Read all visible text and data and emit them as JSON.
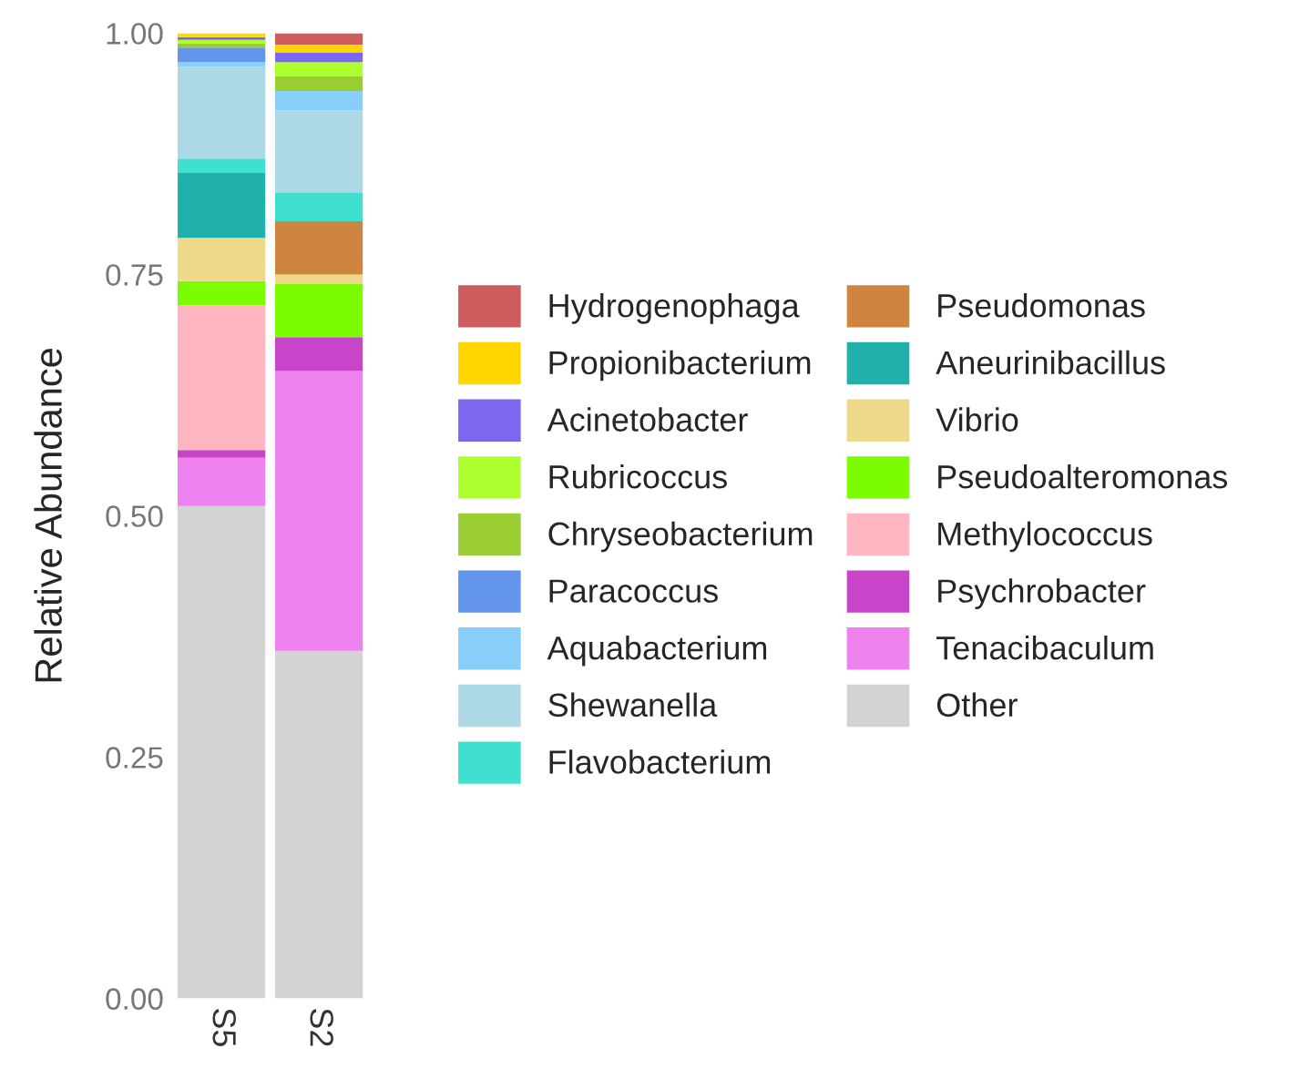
{
  "chart_data": {
    "type": "bar",
    "stacked": true,
    "ylabel": "Relative Abundance",
    "categories": [
      "S5",
      "S2"
    ],
    "ylim": [
      0,
      1
    ],
    "yticks": [
      {
        "value": 0,
        "label": "0.00"
      },
      {
        "value": 0.25,
        "label": "0.25"
      },
      {
        "value": 0.5,
        "label": "0.50"
      },
      {
        "value": 0.75,
        "label": "0.75"
      },
      {
        "value": 1,
        "label": "1.00"
      }
    ],
    "grid": false,
    "legend": "right",
    "series": [
      {
        "name": "Other",
        "color": "#d3d3d3",
        "values": [
          0.51,
          0.36
        ]
      },
      {
        "name": "Tenacibaculum",
        "color": "#ee82ee",
        "values": [
          0.05,
          0.29
        ]
      },
      {
        "name": "Psychrobacter",
        "color": "#c844c8",
        "values": [
          0.008,
          0.035
        ]
      },
      {
        "name": "Methylococcus",
        "color": "#ffb6c1",
        "values": [
          0.15,
          0
        ]
      },
      {
        "name": "Pseudoalteromonas",
        "color": "#7cfc00",
        "values": [
          0.025,
          0.055
        ]
      },
      {
        "name": "Vibrio",
        "color": "#eed98a",
        "values": [
          0.045,
          0.01
        ]
      },
      {
        "name": "Aneurinibacillus",
        "color": "#20b2aa",
        "values": [
          0.067,
          0
        ]
      },
      {
        "name": "Pseudomonas",
        "color": "#cd853f",
        "values": [
          0,
          0.055
        ]
      },
      {
        "name": "Flavobacterium",
        "color": "#40e0d0",
        "values": [
          0.015,
          0.03
        ]
      },
      {
        "name": "Shewanella",
        "color": "#add8e6",
        "values": [
          0.095,
          0.085
        ]
      },
      {
        "name": "Aquabacterium",
        "color": "#87cefa",
        "values": [
          0.005,
          0.02
        ]
      },
      {
        "name": "Paracoccus",
        "color": "#6495ed",
        "values": [
          0.015,
          0
        ]
      },
      {
        "name": "Chryseobacterium",
        "color": "#9acd32",
        "values": [
          0.004,
          0.015
        ]
      },
      {
        "name": "Rubricoccus",
        "color": "#adff2f",
        "values": [
          0.004,
          0.015
        ]
      },
      {
        "name": "Acinetobacter",
        "color": "#7b68ee",
        "values": [
          0.003,
          0.01
        ]
      },
      {
        "name": "Propionibacterium",
        "color": "#ffd700",
        "values": [
          0.004,
          0.008
        ]
      },
      {
        "name": "Hydrogenophaga",
        "color": "#cd5c5c",
        "values": [
          0,
          0.012
        ]
      }
    ]
  }
}
